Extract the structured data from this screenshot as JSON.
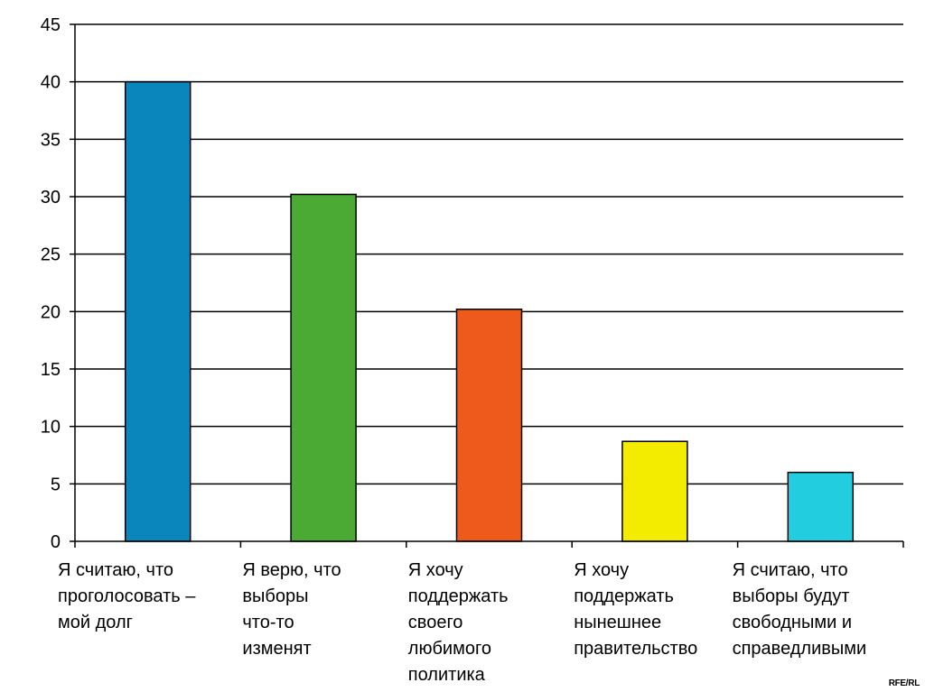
{
  "chart_data": {
    "type": "bar",
    "title": "",
    "xlabel": "",
    "ylabel": "",
    "ylim": [
      0,
      45
    ],
    "yticks": [
      "0",
      "5",
      "10",
      "15",
      "20",
      "25",
      "30",
      "35",
      "40",
      "45"
    ],
    "grid": true,
    "categories": [
      [
        "Я считаю, что",
        "проголосовать –",
        "мой долг"
      ],
      [
        "Я верю, что",
        "выборы",
        "что-то",
        "изменят"
      ],
      [
        "Я хочу",
        "поддержать",
        "своего",
        "любимого",
        "политика"
      ],
      [
        "Я хочу",
        "поддержать",
        "нынешнее",
        "правительство"
      ],
      [
        "Я считаю, что",
        "выборы будут",
        "свободными и",
        "справедливыми"
      ]
    ],
    "values": [
      40,
      30.2,
      20.2,
      8.7,
      6
    ],
    "colors": [
      "#0a86bd",
      "#4aaa34",
      "#ee5a1c",
      "#f4ec00",
      "#22cde0"
    ]
  },
  "watermark": "RFE/RL"
}
